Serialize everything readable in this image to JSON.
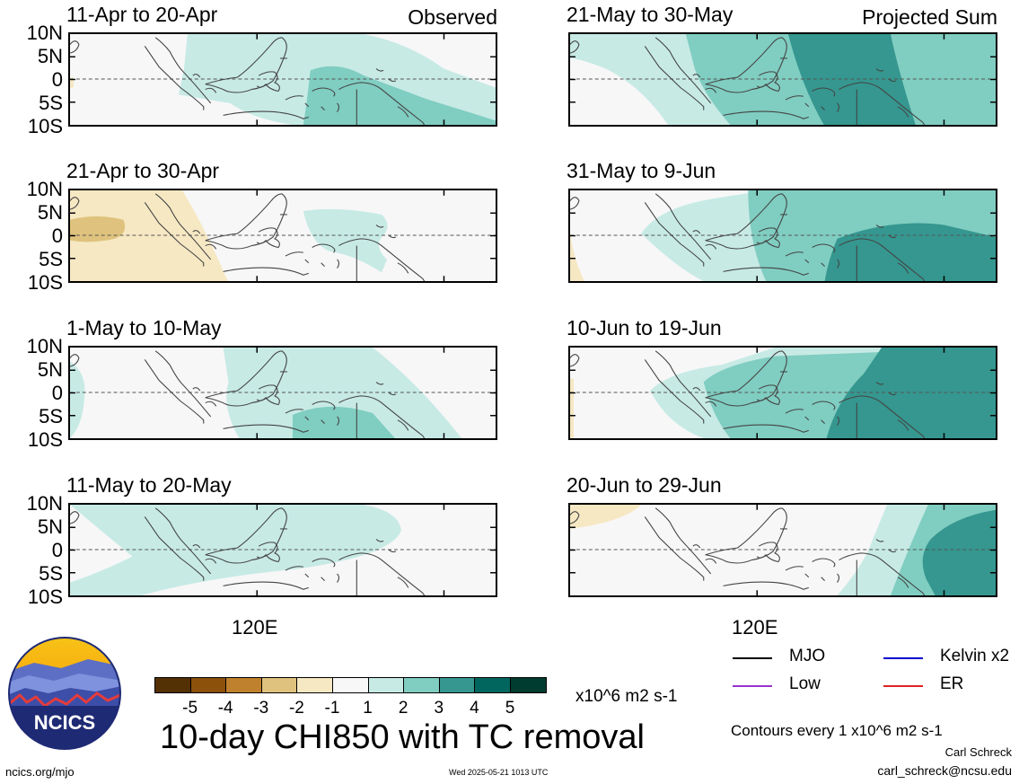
{
  "panels": [
    {
      "title": "11-Apr to 20-Apr",
      "tag": "Observed",
      "col": 0,
      "row": 0
    },
    {
      "title": "21-Apr to 30-Apr",
      "tag": "",
      "col": 0,
      "row": 1
    },
    {
      "title": "1-May to 10-May",
      "tag": "",
      "col": 0,
      "row": 2
    },
    {
      "title": "11-May to 20-May",
      "tag": "",
      "col": 0,
      "row": 3
    },
    {
      "title": "21-May to 30-May",
      "tag": "Projected Sum",
      "col": 1,
      "row": 0
    },
    {
      "title": "31-May to 9-Jun",
      "tag": "",
      "col": 1,
      "row": 1
    },
    {
      "title": "10-Jun to 19-Jun",
      "tag": "",
      "col": 1,
      "row": 2
    },
    {
      "title": "20-Jun to 29-Jun",
      "tag": "",
      "col": 1,
      "row": 3
    }
  ],
  "lat_labels": [
    "10N",
    "5N",
    "0",
    "5S",
    "10S"
  ],
  "lon_label": "120E",
  "colorbar": {
    "colors": [
      "#543005",
      "#8c510a",
      "#bf812d",
      "#dfc27d",
      "#f6e8c3",
      "#f7f7f7",
      "#c7eae5",
      "#80cdc1",
      "#35978f",
      "#01665e",
      "#003c30"
    ],
    "labels": [
      "-5",
      "-4",
      "-3",
      "-2",
      "-1",
      "1",
      "2",
      "3",
      "4",
      "5"
    ],
    "units": "x10^6 m2 s-1"
  },
  "title": "10-day CHI850 with TC removal",
  "legend": [
    {
      "label": "MJO",
      "color": "#000000"
    },
    {
      "label": "Kelvin x2",
      "color": "#0000cc"
    },
    {
      "label": "Low",
      "color": "#9933cc"
    },
    {
      "label": "ER",
      "color": "#dd2222"
    }
  ],
  "contour_note": "Contours every 1 x10^6 m2 s-1",
  "author": "Carl Schreck",
  "email": "carl_schreck@ncsu.edu",
  "site": "ncics.org/mjo",
  "timestamp": "Wed 2025-05-21 1013 UTC",
  "logo_text": "NCICS"
}
